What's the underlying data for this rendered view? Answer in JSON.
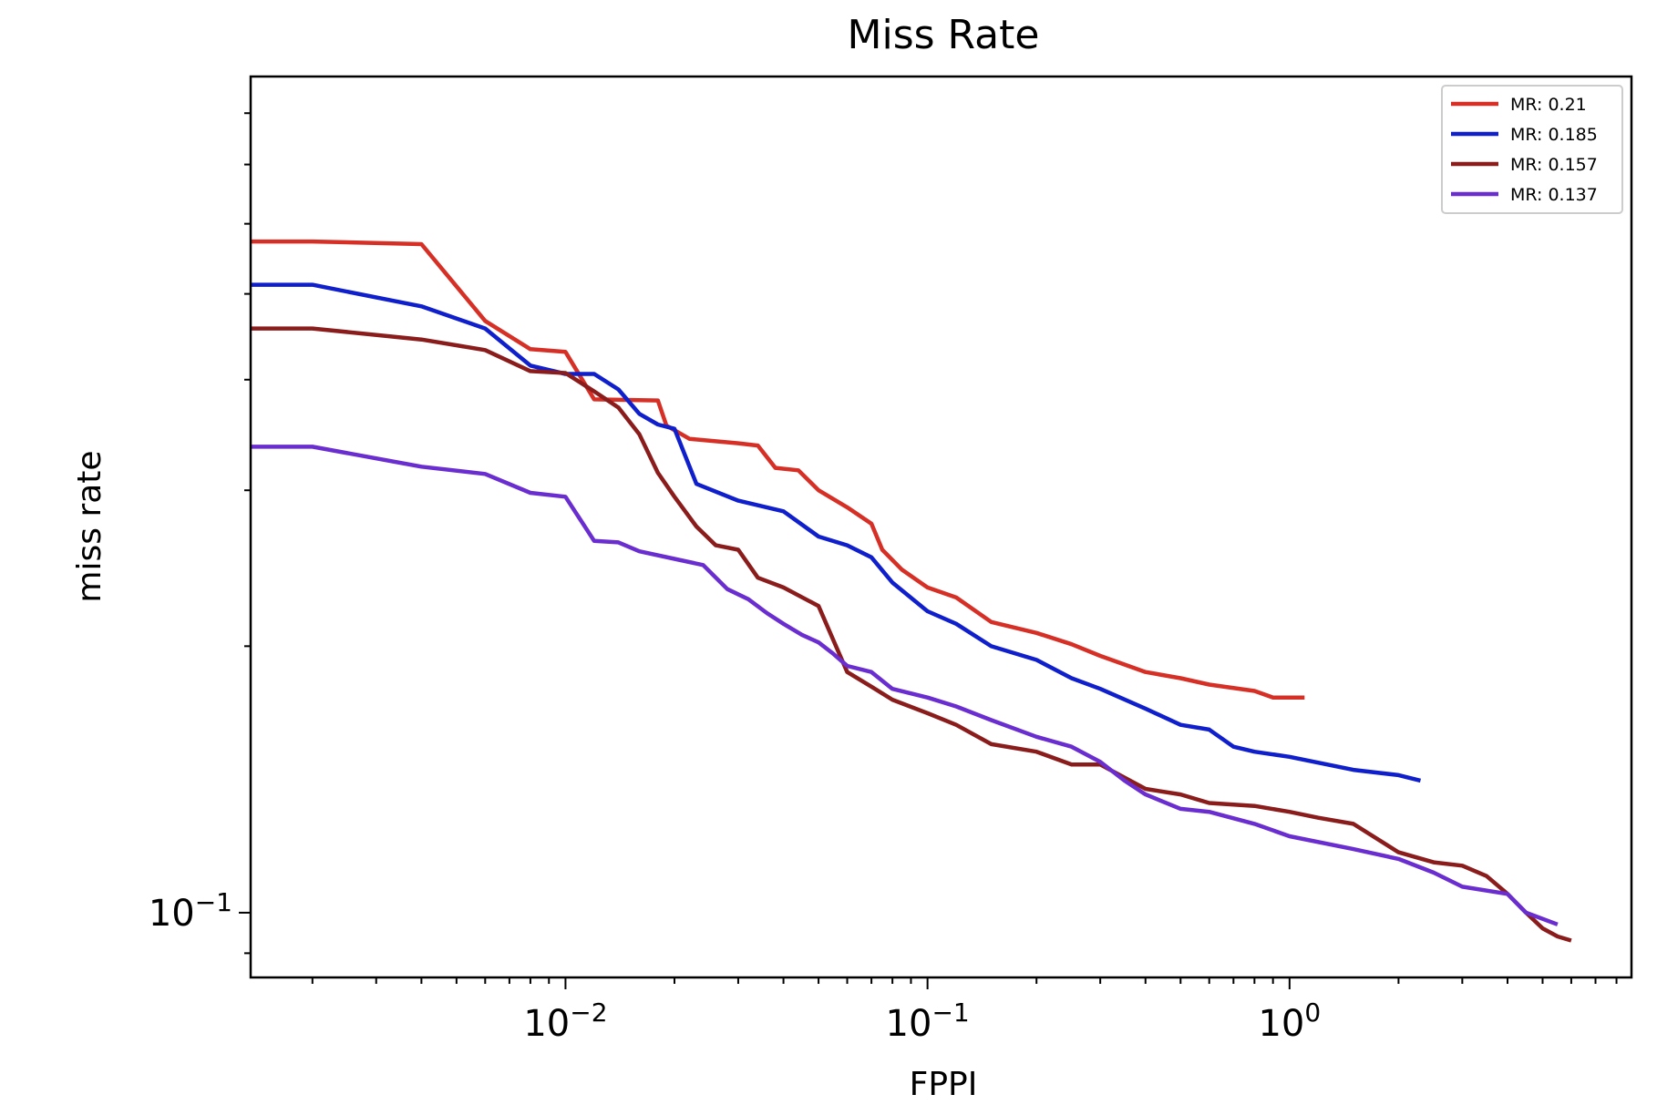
{
  "chart_data": {
    "type": "line",
    "title": "Miss Rate",
    "xlabel": "FPPI",
    "ylabel": "miss rate",
    "xscale": "log",
    "yscale": "log",
    "xlim": [
      0.00135,
      8.8
    ],
    "ylim": [
      0.0845,
      0.88
    ],
    "x_ticks": [
      {
        "value": 0.01,
        "base": "10",
        "exp": "−2"
      },
      {
        "value": 0.1,
        "base": "10",
        "exp": "−1"
      },
      {
        "value": 1,
        "base": "10",
        "exp": "0"
      }
    ],
    "y_ticks": [
      {
        "value": 0.1,
        "base": "10",
        "exp": "−1"
      }
    ],
    "grid": false,
    "legend_position": "top-right",
    "series": [
      {
        "name": "MR: 0.21",
        "color": "#d62f26",
        "points": [
          [
            0.00135,
            0.573
          ],
          [
            0.002,
            0.573
          ],
          [
            0.004,
            0.569
          ],
          [
            0.006,
            0.466
          ],
          [
            0.008,
            0.433
          ],
          [
            0.01,
            0.43
          ],
          [
            0.012,
            0.38
          ],
          [
            0.018,
            0.379
          ],
          [
            0.019,
            0.355
          ],
          [
            0.022,
            0.343
          ],
          [
            0.03,
            0.339
          ],
          [
            0.034,
            0.337
          ],
          [
            0.038,
            0.318
          ],
          [
            0.044,
            0.316
          ],
          [
            0.05,
            0.3
          ],
          [
            0.06,
            0.287
          ],
          [
            0.07,
            0.275
          ],
          [
            0.075,
            0.257
          ],
          [
            0.085,
            0.244
          ],
          [
            0.1,
            0.233
          ],
          [
            0.12,
            0.227
          ],
          [
            0.15,
            0.213
          ],
          [
            0.2,
            0.207
          ],
          [
            0.25,
            0.201
          ],
          [
            0.3,
            0.195
          ],
          [
            0.4,
            0.187
          ],
          [
            0.5,
            0.184
          ],
          [
            0.6,
            0.181
          ],
          [
            0.8,
            0.178
          ],
          [
            0.9,
            0.175
          ],
          [
            1.1,
            0.175
          ]
        ]
      },
      {
        "name": "MR: 0.185",
        "color": "#0f1fcc",
        "points": [
          [
            0.00135,
            0.512
          ],
          [
            0.002,
            0.512
          ],
          [
            0.004,
            0.484
          ],
          [
            0.006,
            0.457
          ],
          [
            0.008,
            0.415
          ],
          [
            0.01,
            0.406
          ],
          [
            0.012,
            0.406
          ],
          [
            0.014,
            0.39
          ],
          [
            0.016,
            0.366
          ],
          [
            0.018,
            0.356
          ],
          [
            0.02,
            0.352
          ],
          [
            0.023,
            0.305
          ],
          [
            0.03,
            0.292
          ],
          [
            0.04,
            0.284
          ],
          [
            0.05,
            0.266
          ],
          [
            0.06,
            0.26
          ],
          [
            0.07,
            0.252
          ],
          [
            0.08,
            0.236
          ],
          [
            0.1,
            0.219
          ],
          [
            0.12,
            0.212
          ],
          [
            0.15,
            0.2
          ],
          [
            0.2,
            0.193
          ],
          [
            0.25,
            0.184
          ],
          [
            0.3,
            0.179
          ],
          [
            0.4,
            0.17
          ],
          [
            0.5,
            0.163
          ],
          [
            0.6,
            0.161
          ],
          [
            0.7,
            0.154
          ],
          [
            0.8,
            0.152
          ],
          [
            1.0,
            0.15
          ],
          [
            1.5,
            0.145
          ],
          [
            2.0,
            0.143
          ],
          [
            2.3,
            0.141
          ]
        ]
      },
      {
        "name": "MR: 0.157",
        "color": "#8b1c1c",
        "points": [
          [
            0.00135,
            0.457
          ],
          [
            0.002,
            0.457
          ],
          [
            0.004,
            0.444
          ],
          [
            0.006,
            0.432
          ],
          [
            0.008,
            0.409
          ],
          [
            0.01,
            0.407
          ],
          [
            0.012,
            0.388
          ],
          [
            0.014,
            0.372
          ],
          [
            0.016,
            0.347
          ],
          [
            0.018,
            0.314
          ],
          [
            0.02,
            0.295
          ],
          [
            0.023,
            0.273
          ],
          [
            0.026,
            0.26
          ],
          [
            0.03,
            0.257
          ],
          [
            0.034,
            0.239
          ],
          [
            0.04,
            0.233
          ],
          [
            0.05,
            0.222
          ],
          [
            0.055,
            0.203
          ],
          [
            0.06,
            0.187
          ],
          [
            0.07,
            0.18
          ],
          [
            0.08,
            0.174
          ],
          [
            0.1,
            0.168
          ],
          [
            0.12,
            0.163
          ],
          [
            0.15,
            0.155
          ],
          [
            0.2,
            0.152
          ],
          [
            0.25,
            0.147
          ],
          [
            0.3,
            0.147
          ],
          [
            0.4,
            0.138
          ],
          [
            0.5,
            0.136
          ],
          [
            0.6,
            0.133
          ],
          [
            0.8,
            0.132
          ],
          [
            1.0,
            0.13
          ],
          [
            1.2,
            0.128
          ],
          [
            1.5,
            0.126
          ],
          [
            2.0,
            0.117
          ],
          [
            2.5,
            0.114
          ],
          [
            3.0,
            0.113
          ],
          [
            3.5,
            0.11
          ],
          [
            4.0,
            0.105
          ],
          [
            4.5,
            0.1
          ],
          [
            5.0,
            0.096
          ],
          [
            5.5,
            0.094
          ],
          [
            6.0,
            0.093
          ]
        ]
      },
      {
        "name": "MR: 0.137",
        "color": "#6a2ed0",
        "points": [
          [
            0.00135,
            0.336
          ],
          [
            0.002,
            0.336
          ],
          [
            0.004,
            0.319
          ],
          [
            0.006,
            0.313
          ],
          [
            0.008,
            0.298
          ],
          [
            0.01,
            0.295
          ],
          [
            0.012,
            0.263
          ],
          [
            0.014,
            0.262
          ],
          [
            0.016,
            0.256
          ],
          [
            0.02,
            0.251
          ],
          [
            0.024,
            0.247
          ],
          [
            0.028,
            0.232
          ],
          [
            0.032,
            0.226
          ],
          [
            0.036,
            0.218
          ],
          [
            0.04,
            0.212
          ],
          [
            0.045,
            0.206
          ],
          [
            0.05,
            0.202
          ],
          [
            0.055,
            0.196
          ],
          [
            0.06,
            0.19
          ],
          [
            0.07,
            0.187
          ],
          [
            0.08,
            0.179
          ],
          [
            0.1,
            0.175
          ],
          [
            0.12,
            0.171
          ],
          [
            0.15,
            0.165
          ],
          [
            0.2,
            0.158
          ],
          [
            0.25,
            0.154
          ],
          [
            0.3,
            0.148
          ],
          [
            0.35,
            0.141
          ],
          [
            0.4,
            0.136
          ],
          [
            0.5,
            0.131
          ],
          [
            0.6,
            0.13
          ],
          [
            0.8,
            0.126
          ],
          [
            1.0,
            0.122
          ],
          [
            1.5,
            0.118
          ],
          [
            2.0,
            0.115
          ],
          [
            2.5,
            0.111
          ],
          [
            3.0,
            0.107
          ],
          [
            4.0,
            0.105
          ],
          [
            4.5,
            0.1
          ],
          [
            5.5,
            0.097
          ]
        ]
      }
    ]
  }
}
